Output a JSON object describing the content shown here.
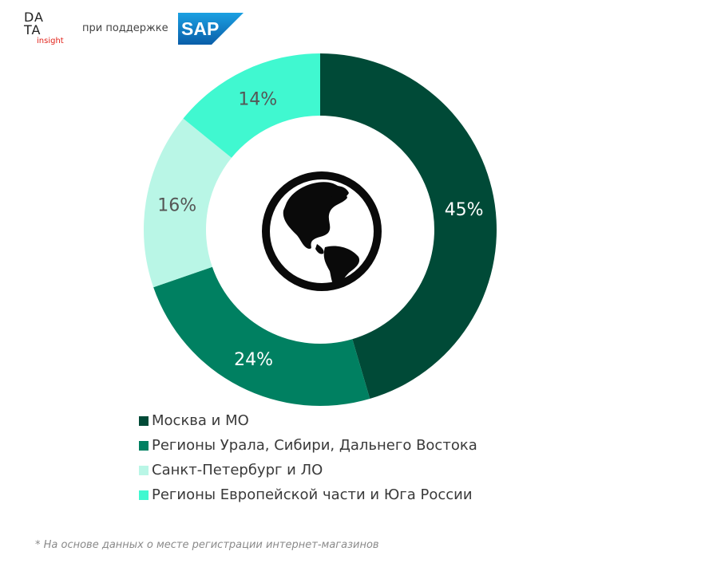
{
  "header": {
    "logo_line1": "DA",
    "logo_line2": "TA",
    "logo_sub": "insight",
    "support_text": "при поддержке",
    "partner_logo": "SAP"
  },
  "chart_data": {
    "type": "pie",
    "donut": true,
    "categories": [
      "Москва и МО",
      "Регионы Урала, Сибири, Дальнего Востока",
      "Санкт-Петербург и ЛО",
      "Регионы Европейской части и Юга России"
    ],
    "values": [
      45,
      24,
      16,
      14
    ],
    "labels": [
      "45%",
      "24%",
      "16%",
      "14%"
    ],
    "colors": [
      "#004a37",
      "#008061",
      "#b9f6e6",
      "#40f8d0"
    ],
    "label_colors": [
      "#ffffff",
      "#ffffff",
      "#555555",
      "#555555"
    ],
    "center_icon": "globe-icon",
    "legend_position": "bottom"
  },
  "footnote": "* На основе данных о месте регистрации интернет-магазинов"
}
